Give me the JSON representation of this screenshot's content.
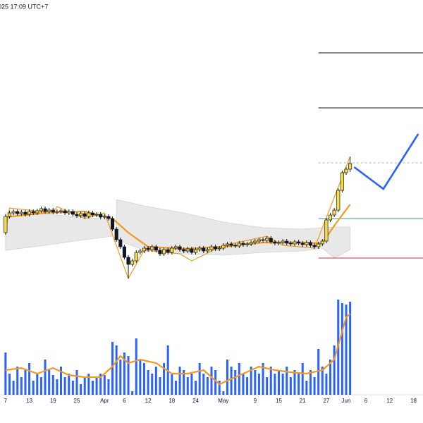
{
  "chart_data": {
    "type": "candlestick",
    "title": "025 17:09 UTC+7",
    "xlim": [
      -1.4,
      105.4
    ],
    "ylim": [
      0,
      420
    ],
    "vlim": [
      0,
      135
    ],
    "xticks": [
      {
        "value": 0,
        "label": "7"
      },
      {
        "value": 6,
        "label": "13"
      },
      {
        "value": 12,
        "label": "19"
      },
      {
        "value": 18,
        "label": "25"
      },
      {
        "value": 25,
        "label": "Apr"
      },
      {
        "value": 30,
        "label": "6"
      },
      {
        "value": 36,
        "label": "12"
      },
      {
        "value": 42,
        "label": "18"
      },
      {
        "value": 48,
        "label": "24"
      },
      {
        "value": 55,
        "label": "May"
      },
      {
        "value": 63,
        "label": "9"
      },
      {
        "value": 69,
        "label": "15"
      },
      {
        "value": 75,
        "label": "21"
      },
      {
        "value": 81,
        "label": "27"
      },
      {
        "value": 86,
        "label": "Jun"
      },
      {
        "value": 91,
        "label": "6"
      },
      {
        "value": 97,
        "label": "12"
      },
      {
        "value": 103,
        "label": "18"
      }
    ],
    "up_color": "#f5dd45",
    "down_color": "#131722",
    "volume_color": "#2962ff",
    "ma_color": "#f39a1e",
    "open": [
      90,
      113,
      118,
      120,
      117,
      119,
      116,
      120,
      118,
      121,
      124,
      120,
      122,
      119,
      120,
      121,
      118,
      120,
      116,
      114,
      117,
      113,
      118,
      115,
      116,
      112,
      113,
      110,
      95,
      80,
      70,
      55,
      45,
      50,
      62,
      64,
      68,
      66,
      70,
      65,
      60,
      66,
      62,
      68,
      70,
      66,
      64,
      67,
      62,
      66,
      68,
      64,
      66,
      70,
      67,
      68,
      72,
      74,
      72,
      71,
      75,
      73,
      74,
      76,
      78,
      80,
      79,
      82,
      77,
      75,
      76,
      78,
      75,
      74,
      77,
      75,
      73,
      76,
      72,
      70,
      74,
      78,
      108,
      115,
      122,
      150,
      175,
      180
    ],
    "high": [
      116,
      121,
      123,
      123,
      122,
      122,
      123,
      123,
      124,
      127,
      127,
      125,
      125,
      123,
      124,
      124,
      123,
      123,
      119,
      120,
      120,
      121,
      121,
      119,
      119,
      116,
      116,
      113,
      98,
      83,
      73,
      58,
      53,
      65,
      67,
      71,
      71,
      73,
      73,
      68,
      69,
      69,
      71,
      73,
      73,
      69,
      70,
      70,
      69,
      71,
      71,
      69,
      73,
      73,
      71,
      75,
      77,
      77,
      75,
      78,
      78,
      77,
      79,
      81,
      83,
      83,
      85,
      85,
      80,
      79,
      81,
      81,
      78,
      80,
      80,
      78,
      79,
      79,
      75,
      77,
      81,
      111,
      118,
      125,
      153,
      178,
      183,
      198
    ],
    "low": [
      87,
      110,
      115,
      114,
      114,
      113,
      113,
      115,
      115,
      118,
      117,
      117,
      116,
      116,
      117,
      115,
      115,
      113,
      111,
      111,
      110,
      110,
      112,
      112,
      109,
      109,
      107,
      92,
      77,
      67,
      52,
      25,
      42,
      47,
      59,
      61,
      63,
      63,
      62,
      57,
      57,
      59,
      59,
      65,
      63,
      61,
      61,
      59,
      59,
      63,
      61,
      61,
      63,
      64,
      64,
      65,
      69,
      69,
      68,
      68,
      70,
      70,
      71,
      73,
      75,
      76,
      76,
      74,
      72,
      72,
      73,
      72,
      71,
      71,
      72,
      70,
      70,
      69,
      67,
      67,
      71,
      75,
      105,
      112,
      119,
      147,
      172,
      176
    ],
    "close": [
      113,
      118,
      120,
      117,
      119,
      116,
      120,
      118,
      121,
      124,
      120,
      122,
      119,
      120,
      121,
      118,
      120,
      116,
      114,
      117,
      113,
      118,
      115,
      116,
      112,
      113,
      110,
      95,
      80,
      70,
      55,
      45,
      50,
      62,
      64,
      68,
      66,
      70,
      65,
      60,
      66,
      62,
      68,
      70,
      66,
      64,
      67,
      62,
      66,
      68,
      64,
      66,
      70,
      67,
      68,
      72,
      74,
      72,
      71,
      75,
      73,
      74,
      76,
      78,
      80,
      79,
      82,
      77,
      75,
      76,
      78,
      75,
      74,
      77,
      75,
      73,
      76,
      72,
      70,
      74,
      78,
      108,
      115,
      122,
      150,
      175,
      180,
      188
    ],
    "volume": [
      60,
      30,
      20,
      40,
      25,
      35,
      45,
      20,
      30,
      25,
      50,
      35,
      28,
      22,
      40,
      25,
      30,
      20,
      35,
      15,
      25,
      30,
      20,
      25,
      30,
      28,
      22,
      75,
      70,
      50,
      60,
      55,
      5,
      80,
      50,
      45,
      35,
      30,
      40,
      25,
      45,
      70,
      30,
      20,
      40,
      35,
      25,
      30,
      20,
      45,
      30,
      25,
      40,
      35,
      20,
      5,
      50,
      40,
      35,
      45,
      30,
      25,
      40,
      35,
      30,
      45,
      25,
      40,
      30,
      35,
      30,
      40,
      25,
      35,
      30,
      45,
      20,
      35,
      25,
      65,
      40,
      30,
      50,
      70,
      135,
      130,
      128,
      132
    ],
    "price_ma": {
      "x": [
        0,
        10,
        20,
        27,
        31,
        36,
        45,
        55,
        65,
        75,
        80,
        83,
        85,
        87
      ],
      "y": [
        112,
        118,
        120,
        110,
        90,
        70,
        67,
        70,
        76,
        76,
        75,
        100,
        115,
        130
      ]
    },
    "volume_ma": {
      "x": [
        0,
        4,
        8,
        12,
        16,
        20,
        24,
        27,
        29,
        31,
        34,
        38,
        42,
        46,
        50,
        54,
        56,
        60,
        64,
        68,
        72,
        76,
        80,
        83,
        84,
        86,
        87
      ],
      "y": [
        35,
        38,
        30,
        38,
        28,
        25,
        25,
        40,
        55,
        45,
        50,
        45,
        30,
        30,
        35,
        15,
        20,
        30,
        40,
        35,
        32,
        30,
        35,
        50,
        70,
        110,
        115
      ]
    },
    "zigzag": {
      "x": [
        0,
        1,
        12,
        13,
        20,
        25,
        31,
        35,
        44,
        47,
        55,
        66,
        70,
        78,
        87
      ],
      "y": [
        90,
        125,
        118,
        127,
        110,
        118,
        25,
        65,
        60,
        50,
        72,
        85,
        72,
        68,
        198
      ]
    },
    "bands": [
      {
        "x": [
          0,
          10,
          20,
          27
        ],
        "upper": [
          118,
          116,
          112,
          108
        ],
        "lower": [
          65,
          72,
          80,
          85
        ]
      },
      {
        "x": [
          28,
          35,
          45,
          55,
          65,
          75,
          80,
          83,
          87
        ],
        "upper": [
          137,
          128,
          118,
          105,
          97,
          95,
          97,
          98,
          98
        ],
        "lower": [
          80,
          65,
          60,
          58,
          62,
          64,
          68,
          54,
          66
        ]
      }
    ],
    "projection": {
      "x": [
        88,
        95.4,
        104.2
      ],
      "y": [
        183,
        152,
        230
      ]
    },
    "levels": [
      {
        "value": 345,
        "color": "#131722",
        "from": 79
      },
      {
        "value": 267,
        "color": "#131722",
        "from": 79
      },
      {
        "value": 189,
        "color": "#b0b0b0",
        "from": 79,
        "dashed": true
      },
      {
        "value": 110,
        "color": "#26a69a",
        "from": 79
      },
      {
        "value": 54,
        "color": "#d32f2f",
        "from": 79
      }
    ]
  }
}
